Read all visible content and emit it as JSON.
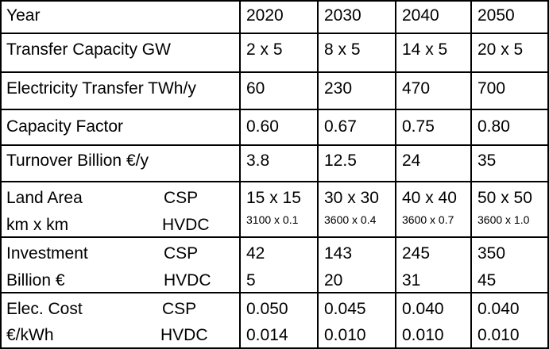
{
  "header": {
    "label": "Year",
    "years": [
      "2020",
      "2030",
      "2040",
      "2050"
    ]
  },
  "rows": [
    {
      "label": "Transfer Capacity GW",
      "values": [
        "2 x 5",
        "8 x 5",
        "14 x 5",
        "20 x 5"
      ]
    },
    {
      "label": "Electricity Transfer TWh/y",
      "values": [
        "60",
        "230",
        "470",
        "700"
      ]
    },
    {
      "label": "Capacity Factor",
      "values": [
        "0.60",
        "0.67",
        "0.75",
        "0.80"
      ]
    },
    {
      "label": "Turnover Billion €/y",
      "values": [
        "3.8",
        "12.5",
        "24",
        "35"
      ]
    },
    {
      "label": "Land Area",
      "label2": "km x km",
      "sub1": "CSP",
      "sub2": "HVDC",
      "values": [
        "15 x 15",
        "30 x 30",
        "40 x 40",
        "50 x 50"
      ],
      "values2": [
        "3100 x 0.1",
        "3600 x 0.4",
        "3600 x 0.7",
        "3600 x 1.0"
      ]
    },
    {
      "label": "Investment",
      "label2": "Billion €",
      "sub1": "CSP",
      "sub2": "HVDC",
      "values": [
        "42",
        "143",
        "245",
        "350"
      ],
      "values2": [
        "5",
        "20",
        "31",
        "45"
      ]
    },
    {
      "label": "Elec. Cost",
      "label2": "€/kWh",
      "sub1": "CSP",
      "sub2": "HVDC",
      "values": [
        "0.050",
        "0.045",
        "0.040",
        "0.040"
      ],
      "values2": [
        "0.014",
        "0.010",
        "0.010",
        "0.010"
      ]
    }
  ]
}
